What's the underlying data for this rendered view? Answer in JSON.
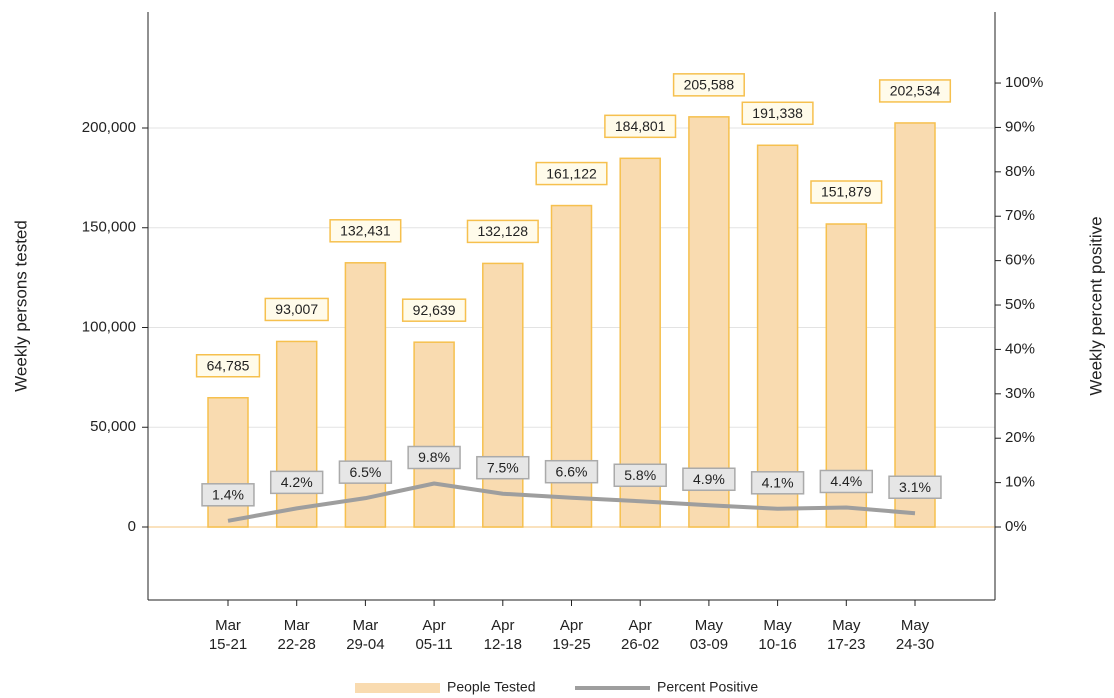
{
  "chart_data": {
    "type": "bar",
    "categories": [
      "Mar\n15-21",
      "Mar\n22-28",
      "Mar\n29-04",
      "Apr\n05-11",
      "Apr\n12-18",
      "Apr\n19-25",
      "Apr\n26-02",
      "May\n03-09",
      "May\n10-16",
      "May\n17-23",
      "May\n24-30"
    ],
    "series": [
      {
        "name": "People Tested",
        "type": "bar",
        "color": "#f9dbb0",
        "edge_color": "#f6c04e",
        "values": [
          64785,
          93007,
          132431,
          92639,
          132128,
          161122,
          184801,
          205588,
          191338,
          151879,
          202534
        ],
        "value_labels": [
          "64,785",
          "93,007",
          "132,431",
          "92,639",
          "132,128",
          "161,122",
          "184,801",
          "205,588",
          "191,338",
          "151,879",
          "202,534"
        ]
      },
      {
        "name": "Percent Positive",
        "type": "line",
        "axis": "y2",
        "color": "#9e9e9e",
        "values": [
          1.4,
          4.2,
          6.5,
          9.8,
          7.5,
          6.6,
          5.8,
          4.9,
          4.1,
          4.4,
          3.1
        ],
        "value_labels": [
          "1.4%",
          "4.2%",
          "6.5%",
          "9.8%",
          "7.5%",
          "6.6%",
          "5.8%",
          "4.9%",
          "4.1%",
          "4.4%",
          "3.1%"
        ]
      }
    ],
    "ylabel": "Weekly persons tested",
    "y2label": "Weekly percent positive",
    "ylim": [
      -36591,
      258145
    ],
    "yticks": [
      0,
      {
        "value": 50000,
        "label": "50,000"
      },
      {
        "value": 100000,
        "label": "100,000"
      },
      {
        "value": 150000,
        "label": "150,000"
      },
      {
        "value": 200000,
        "label": "200,000"
      }
    ],
    "y2lim": [
      -16.44,
      116.0
    ],
    "y2ticks": [
      {
        "value": 0,
        "label": "0%"
      },
      {
        "value": 10,
        "label": "10%"
      },
      {
        "value": 20,
        "label": "20%"
      },
      {
        "value": 30,
        "label": "30%"
      },
      {
        "value": 40,
        "label": "40%"
      },
      {
        "value": 50,
        "label": "50%"
      },
      {
        "value": 60,
        "label": "60%"
      },
      {
        "value": 70,
        "label": "70%"
      },
      {
        "value": 80,
        "label": "80%"
      },
      {
        "value": 90,
        "label": "90%"
      },
      {
        "value": 100,
        "label": "100%"
      }
    ],
    "grid": true,
    "legend": "bottom"
  }
}
